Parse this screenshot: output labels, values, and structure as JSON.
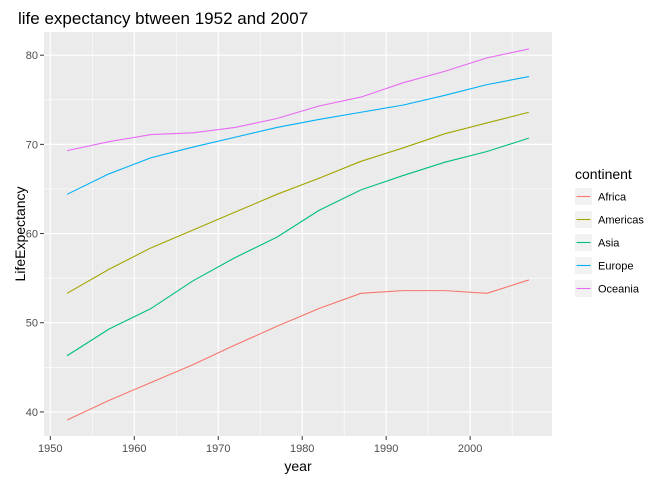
{
  "chart_data": {
    "type": "line",
    "title": "life expectancy btween 1952 and 2007",
    "xlabel": "year",
    "ylabel": "LifeExpectancy",
    "xlim": [
      1949.25,
      2009.75
    ],
    "ylim": [
      37.3,
      82.6
    ],
    "xticks": [
      1950,
      1960,
      1970,
      1980,
      1990,
      2000
    ],
    "yticks": [
      40,
      50,
      60,
      70,
      80
    ],
    "grid": true,
    "legend": {
      "title": "continent",
      "position": "right"
    },
    "x": [
      1952,
      1957,
      1962,
      1967,
      1972,
      1977,
      1982,
      1987,
      1992,
      1997,
      2002,
      2007
    ],
    "series": [
      {
        "name": "Africa",
        "color": "#F8766D",
        "values": [
          39.1,
          41.3,
          43.3,
          45.3,
          47.5,
          49.6,
          51.6,
          53.3,
          53.6,
          53.6,
          53.3,
          54.8
        ]
      },
      {
        "name": "Americas",
        "color": "#A3A500",
        "values": [
          53.3,
          56.0,
          58.4,
          60.4,
          62.4,
          64.4,
          66.2,
          68.1,
          69.6,
          71.2,
          72.4,
          73.6
        ]
      },
      {
        "name": "Asia",
        "color": "#00BF7D",
        "values": [
          46.3,
          49.3,
          51.6,
          54.7,
          57.3,
          59.6,
          62.6,
          64.9,
          66.5,
          68.0,
          69.2,
          70.7
        ]
      },
      {
        "name": "Europe",
        "color": "#00B0F6",
        "values": [
          64.4,
          66.7,
          68.5,
          69.7,
          70.8,
          71.9,
          72.8,
          73.6,
          74.4,
          75.5,
          76.7,
          77.6
        ]
      },
      {
        "name": "Oceania",
        "color": "#E76BF3",
        "values": [
          69.3,
          70.3,
          71.1,
          71.3,
          71.9,
          72.9,
          74.3,
          75.3,
          76.9,
          78.2,
          79.7,
          80.7
        ]
      }
    ]
  }
}
